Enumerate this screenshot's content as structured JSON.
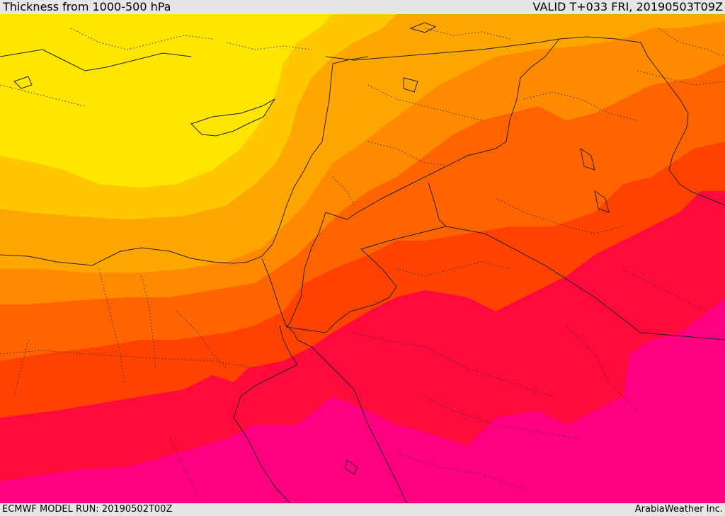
{
  "header": {
    "title": "Thickness from 1000-500 hPa",
    "valid_time": "VALID T+033 FRI, 20190503T09Z"
  },
  "footer": {
    "model_run": "ECMWF MODEL RUN: 20190502T00Z",
    "credit": "ArabiaWeather Inc."
  },
  "map": {
    "field": "1000-500 hPa thickness",
    "region": "Eastern Mediterranean, Levant, Egypt, Arabian Peninsula",
    "color_bands": [
      "#ffe600",
      "#ffc800",
      "#ffa600",
      "#ff8a00",
      "#ff6400",
      "#ff4200",
      "#ff0a3c",
      "#ff0080",
      "#ff1ab4"
    ]
  }
}
